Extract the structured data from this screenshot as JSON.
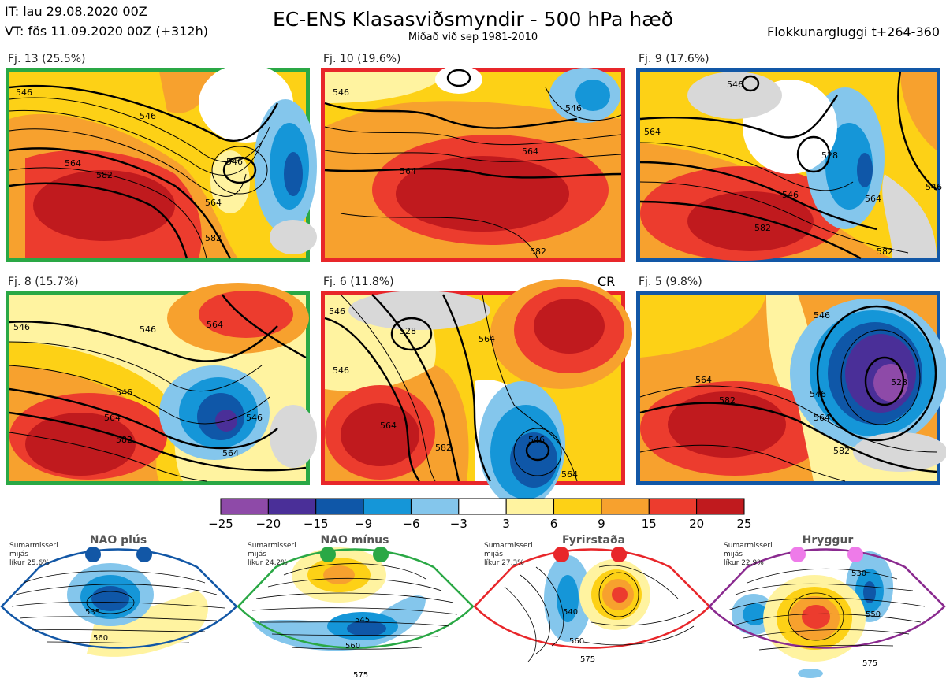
{
  "header": {
    "it": "IT: lau 29.08.2020 00Z",
    "vt": "VT: fös 11.09.2020 00Z  (+312h)",
    "title": "EC-ENS Klasasviðsmyndir - 500 hPa hæð",
    "subtitle": "Miðað við sep 1981-2010",
    "window": "Flokkunargluggi t+264-360"
  },
  "colors": {
    "green": "#2aa845",
    "red": "#e8262a",
    "blue": "#1257a6",
    "purple": "#8a2a8f",
    "pink": "#ee7be9"
  },
  "panels": [
    {
      "label": "Fj. 13 (25.5%)",
      "border": "green",
      "contours": [
        "546",
        "564",
        "582",
        "546",
        "546",
        "564",
        "582"
      ]
    },
    {
      "label": "Fj. 10 (19.6%)",
      "border": "red",
      "contours": [
        "546",
        "546",
        "564",
        "564",
        "582"
      ]
    },
    {
      "label": "Fj. 9 (17.6%)",
      "border": "blue",
      "contours": [
        "546",
        "564",
        "546",
        "528",
        "564",
        "582",
        "582",
        "546"
      ]
    },
    {
      "label": "Fj. 8 (15.7%)",
      "border": "green",
      "contours": [
        "546",
        "546",
        "564",
        "546",
        "564",
        "582",
        "564",
        "546"
      ]
    },
    {
      "label": "Fj. 6 (11.8%)",
      "border": "red",
      "badge": "CR",
      "contours": [
        "546",
        "528",
        "564",
        "546",
        "564",
        "546",
        "582",
        "564"
      ]
    },
    {
      "label": "Fj. 5 (9.8%)",
      "border": "blue",
      "contours": [
        "546",
        "564",
        "528",
        "546",
        "582",
        "564",
        "582"
      ]
    }
  ],
  "colorbar": {
    "ticks": [
      "−25",
      "−20",
      "−15",
      "−9",
      "−6",
      "−3",
      "3",
      "6",
      "9",
      "15",
      "20",
      "25"
    ],
    "colors": [
      "#8e4aa8",
      "#4a2f98",
      "#0f57a8",
      "#1596d8",
      "#84c6ec",
      "#ffffff",
      "#fff3a0",
      "#fdd116",
      "#f7a12e",
      "#ec3c2e",
      "#c01a1e"
    ]
  },
  "climatology": [
    {
      "name": "NAO plús",
      "note": [
        "Sumarmisseri",
        "mijás",
        "líkur 25,6%"
      ],
      "border": "blue",
      "dot": "blue",
      "contours": [
        "535",
        "560"
      ]
    },
    {
      "name": "NAO mínus",
      "note": [
        "Sumarmisseri",
        "mijás",
        "líkur 24,2%"
      ],
      "border": "green",
      "dot": "green",
      "contours": [
        "545",
        "560",
        "575"
      ]
    },
    {
      "name": "Fyrirstaða",
      "note": [
        "Sumarmisseri",
        "mijás",
        "líkur 27,3%"
      ],
      "border": "red",
      "dot": "red",
      "contours": [
        "540",
        "560",
        "575"
      ]
    },
    {
      "name": "Hryggur",
      "note": [
        "Sumarmisseri",
        "mijás",
        "líkur 22,9%"
      ],
      "border": "purple",
      "dot": "pink",
      "contours": [
        "530",
        "550",
        "575"
      ]
    }
  ]
}
